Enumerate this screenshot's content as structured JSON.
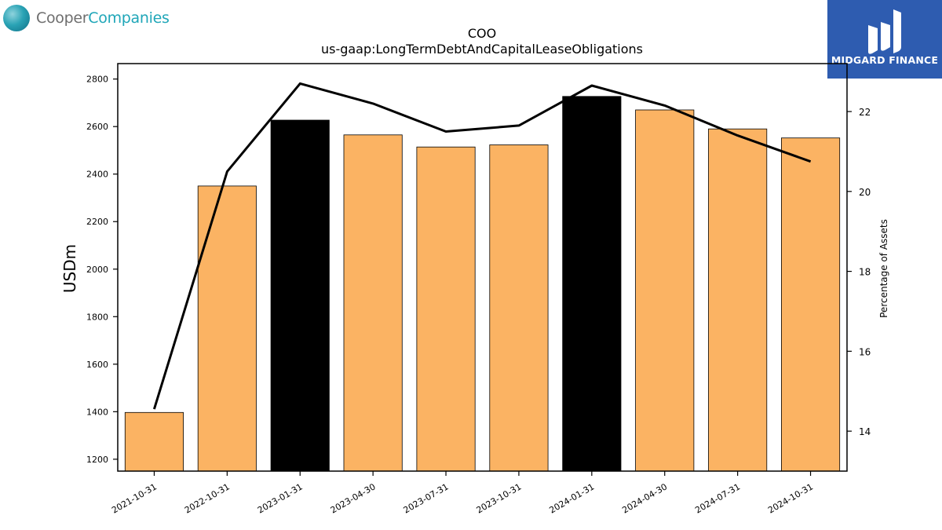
{
  "logos": {
    "left_part1": "Cooper",
    "left_part2": "Companies",
    "right_text": "MIDGARD FINANCE"
  },
  "chart_data": {
    "type": "bar",
    "title": "COO",
    "subtitle": "us-gaap:LongTermDebtAndCapitalLeaseObligations",
    "ylabel": "USDm",
    "y2label": "Percentage of Assets",
    "categories": [
      "2021-10-31",
      "2022-10-31",
      "2023-01-31",
      "2023-04-30",
      "2023-07-31",
      "2023-10-31",
      "2024-01-31",
      "2024-04-30",
      "2024-07-31",
      "2024-10-31"
    ],
    "values": [
      1397,
      2350,
      2627,
      2565,
      2514,
      2523,
      2727,
      2670,
      2590,
      2552
    ],
    "highlighted": [
      false,
      false,
      true,
      false,
      false,
      false,
      true,
      false,
      false,
      false
    ],
    "line_values": [
      14.55,
      20.5,
      22.7,
      22.2,
      21.5,
      21.65,
      22.65,
      22.15,
      21.4,
      20.75
    ],
    "ylim": [
      1150,
      2865
    ],
    "y2lim": [
      13.0,
      23.2
    ],
    "yticks": [
      1200,
      1400,
      1600,
      1800,
      2000,
      2200,
      2400,
      2600,
      2800
    ],
    "y2ticks": [
      14,
      16,
      18,
      20,
      22
    ],
    "bar_color": "#fbb363",
    "highlight_color": "#000000",
    "line_color": "#000000",
    "grid": false
  }
}
